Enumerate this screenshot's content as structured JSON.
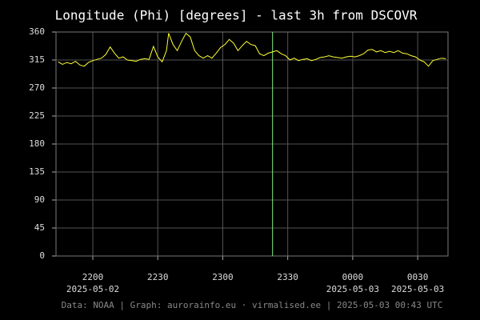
{
  "chart_data": {
    "type": "line",
    "title": "Longitude (Phi) [degrees] - last 3h from DSCOVR",
    "footer": "Data: NOAA | Graph: aurorainfo.eu · virmalised.ee | 2025-05-03 00:43 UTC",
    "xlim": [
      1303,
      1484
    ],
    "xticks": [
      {
        "value": 1320,
        "label": "2200"
      },
      {
        "value": 1350,
        "label": "2230"
      },
      {
        "value": 1380,
        "label": "2300"
      },
      {
        "value": 1410,
        "label": "2330"
      },
      {
        "value": 1440,
        "label": "0000"
      },
      {
        "value": 1470,
        "label": "0030"
      }
    ],
    "x_date_labels": [
      {
        "value": 1320,
        "label": "2025-05-02"
      },
      {
        "value": 1440,
        "label": "2025-05-03"
      },
      {
        "value": 1470,
        "label": "2025-05-03"
      }
    ],
    "ylim": [
      0,
      360
    ],
    "yticks": [
      0,
      45,
      90,
      135,
      180,
      225,
      270,
      315,
      360
    ],
    "grid": true,
    "vline": {
      "value": 1403,
      "color": "#88ee88"
    },
    "x": [
      1304,
      1306,
      1308,
      1310,
      1312,
      1314,
      1316,
      1318,
      1320,
      1322,
      1324,
      1326,
      1328,
      1330,
      1332,
      1334,
      1336,
      1338,
      1340,
      1342,
      1344,
      1346,
      1348,
      1350,
      1352,
      1354,
      1355,
      1357,
      1359,
      1361,
      1363,
      1365,
      1367,
      1369,
      1371,
      1373,
      1375,
      1377,
      1379,
      1381,
      1383,
      1385,
      1387,
      1389,
      1391,
      1393,
      1395,
      1397,
      1399,
      1401,
      1403,
      1405,
      1407,
      1409,
      1411,
      1413,
      1415,
      1417,
      1419,
      1421,
      1423,
      1425,
      1427,
      1429,
      1431,
      1433,
      1435,
      1437,
      1439,
      1441,
      1443,
      1445,
      1447,
      1449,
      1451,
      1453,
      1455,
      1457,
      1459,
      1461,
      1463,
      1465,
      1467,
      1469,
      1471,
      1473,
      1475,
      1477,
      1479,
      1481,
      1483
    ],
    "series": [
      {
        "name": "Longitude",
        "color": "#ffff33",
        "values": [
          312,
          308,
          311,
          309,
          313,
          307,
          305,
          311,
          314,
          316,
          318,
          324,
          336,
          326,
          318,
          320,
          315,
          314,
          313,
          316,
          317,
          316,
          337,
          320,
          312,
          330,
          358,
          340,
          330,
          345,
          358,
          352,
          330,
          322,
          318,
          322,
          318,
          326,
          335,
          340,
          348,
          342,
          330,
          338,
          345,
          340,
          338,
          325,
          322,
          326,
          328,
          330,
          325,
          322,
          315,
          318,
          314,
          316,
          317,
          314,
          316,
          319,
          320,
          322,
          320,
          319,
          318,
          320,
          321,
          320,
          322,
          325,
          331,
          332,
          328,
          330,
          327,
          329,
          327,
          330,
          326,
          325,
          322,
          320,
          315,
          312,
          305,
          314,
          316,
          318,
          317
        ]
      }
    ]
  }
}
